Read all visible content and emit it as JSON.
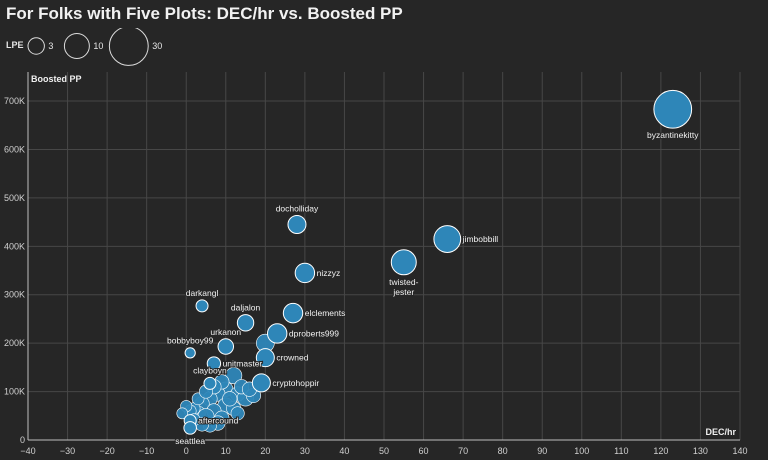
{
  "chart_data": {
    "type": "scatter",
    "title": "For Folks with Five Plots: DEC/hr vs. Boosted PP",
    "xlabel": "DEC/hr",
    "ylabel": "Boosted PP",
    "xlim": [
      -40,
      140
    ],
    "ylim": [
      0,
      760000
    ],
    "x_ticks": [
      -40,
      -30,
      -20,
      -10,
      0,
      10,
      20,
      30,
      40,
      50,
      60,
      70,
      80,
      90,
      100,
      110,
      120,
      130,
      140
    ],
    "x_tick_labels": [
      "−40",
      "−30",
      "−20",
      "−10",
      "0",
      "10",
      "20",
      "30",
      "40",
      "50",
      "60",
      "70",
      "80",
      "90",
      "100",
      "110",
      "120",
      "130",
      "140"
    ],
    "y_ticks": [
      0,
      100000,
      200000,
      300000,
      400000,
      500000,
      600000,
      700000
    ],
    "y_tick_labels": [
      "0",
      "100K",
      "200K",
      "300K",
      "400K",
      "500K",
      "600K",
      "700K"
    ],
    "grid": true,
    "size_legend": {
      "title": "LPE",
      "entries": [
        {
          "value": 3,
          "label": "3"
        },
        {
          "value": 10,
          "label": "10"
        },
        {
          "value": 30,
          "label": "30"
        }
      ]
    },
    "colors": {
      "point": "#2e86b8",
      "point_stroke": "#ffffff",
      "grid": "#474747",
      "axis": "#bfbfbf"
    },
    "labeled_points": [
      {
        "name": "byzantinekitty",
        "x": 123,
        "y": 683000,
        "size": 28
      },
      {
        "name": "jimbobbill",
        "x": 66,
        "y": 415000,
        "size": 12
      },
      {
        "name": "twisted-\njester",
        "x": 55,
        "y": 367000,
        "size": 10
      },
      {
        "name": "docholliday",
        "x": 28,
        "y": 445000,
        "size": 4
      },
      {
        "name": "nizzyz",
        "x": 30,
        "y": 345000,
        "size": 5
      },
      {
        "name": "darkangl",
        "x": 4,
        "y": 277000,
        "size": 1
      },
      {
        "name": "daljalon",
        "x": 15,
        "y": 242000,
        "size": 3
      },
      {
        "name": "elclements",
        "x": 27,
        "y": 262000,
        "size": 5
      },
      {
        "name": "urkanon",
        "x": 10,
        "y": 193000,
        "size": 2.5
      },
      {
        "name": "dproberts999",
        "x": 23,
        "y": 220000,
        "size": 5
      },
      {
        "name": "bobbyboy99",
        "x": 1,
        "y": 180000,
        "size": 0.5
      },
      {
        "name": "crowned",
        "x": 20,
        "y": 170000,
        "size": 4
      },
      {
        "name": "unitmaster",
        "x": 7,
        "y": 158000,
        "size": 1.5
      },
      {
        "name": "clayboyn",
        "x": 6,
        "y": 117000,
        "size": 1
      },
      {
        "name": "cryptohoppir",
        "x": 19,
        "y": 118000,
        "size": 4
      },
      {
        "name": "aftercound",
        "x": 1,
        "y": 40000,
        "size": 1
      },
      {
        "name": "seattlea",
        "x": 1,
        "y": 25000,
        "size": 1.2
      }
    ],
    "unlabeled_points": [
      {
        "x": 20,
        "y": 200000,
        "size": 4
      },
      {
        "x": 12,
        "y": 133000,
        "size": 3
      },
      {
        "x": 10,
        "y": 105000,
        "size": 2
      },
      {
        "x": 13,
        "y": 95000,
        "size": 2
      },
      {
        "x": 15,
        "y": 87000,
        "size": 3
      },
      {
        "x": 17,
        "y": 92000,
        "size": 2
      },
      {
        "x": 8,
        "y": 95000,
        "size": 2
      },
      {
        "x": 6,
        "y": 85000,
        "size": 2
      },
      {
        "x": 4,
        "y": 75000,
        "size": 2
      },
      {
        "x": 10,
        "y": 70000,
        "size": 3
      },
      {
        "x": 12,
        "y": 65000,
        "size": 2
      },
      {
        "x": 7,
        "y": 60000,
        "size": 2
      },
      {
        "x": 3,
        "y": 55000,
        "size": 2
      },
      {
        "x": 5,
        "y": 48000,
        "size": 3
      },
      {
        "x": 9,
        "y": 45000,
        "size": 2
      },
      {
        "x": 2,
        "y": 65000,
        "size": 1
      },
      {
        "x": 11,
        "y": 85000,
        "size": 2
      },
      {
        "x": 8,
        "y": 35000,
        "size": 2
      },
      {
        "x": 6,
        "y": 30000,
        "size": 1.5
      },
      {
        "x": 4,
        "y": 32000,
        "size": 1.5
      },
      {
        "x": 14,
        "y": 110000,
        "size": 2
      },
      {
        "x": 16,
        "y": 105000,
        "size": 2
      },
      {
        "x": 9,
        "y": 120000,
        "size": 2
      },
      {
        "x": 3,
        "y": 85000,
        "size": 1
      },
      {
        "x": 1,
        "y": 60000,
        "size": 1
      },
      {
        "x": 0,
        "y": 70000,
        "size": 0.8
      },
      {
        "x": -1,
        "y": 55000,
        "size": 0.7
      },
      {
        "x": 7,
        "y": 110000,
        "size": 2
      },
      {
        "x": 5,
        "y": 100000,
        "size": 1.5
      },
      {
        "x": 13,
        "y": 55000,
        "size": 1.5
      },
      {
        "x": 2,
        "y": 42000,
        "size": 1
      }
    ]
  }
}
